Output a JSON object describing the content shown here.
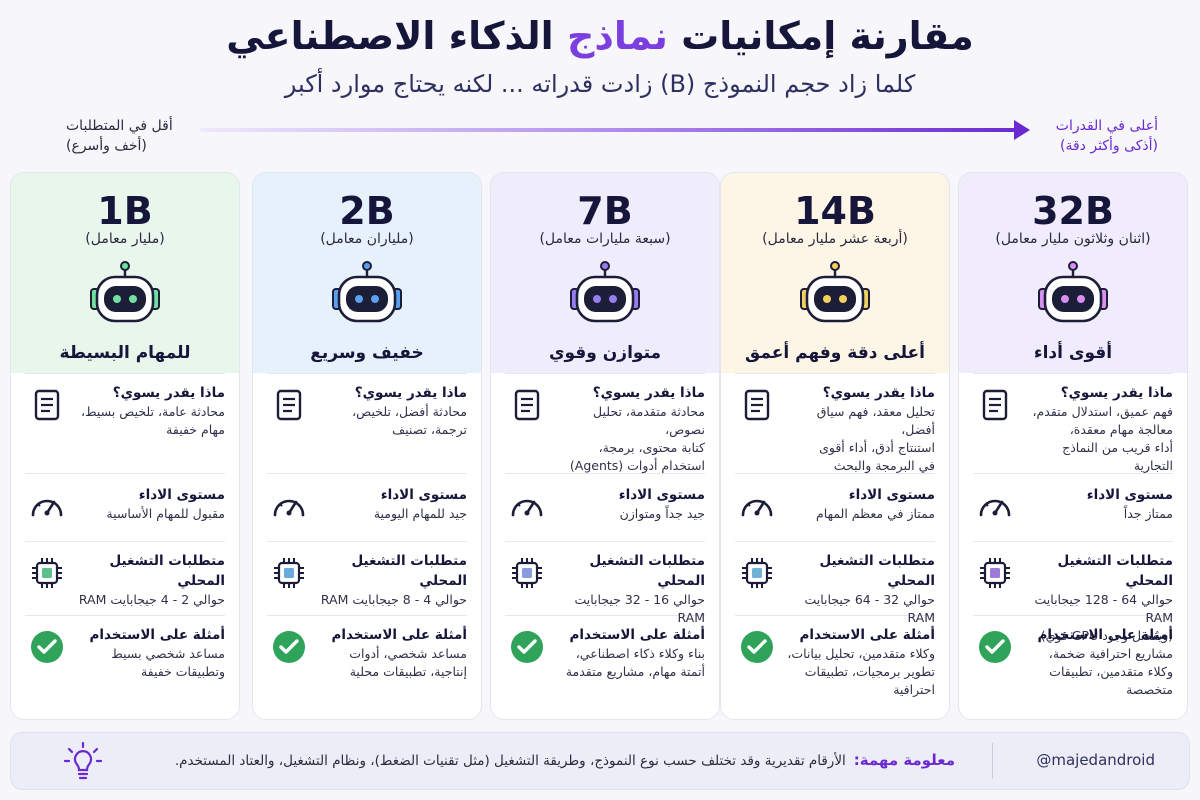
{
  "header": {
    "title_part1": "مقارنة إمكانيات",
    "title_highlight": "نماذج",
    "title_part2": "الذكاء الاصطناعي",
    "subtitle": "كلما زاد حجم النموذج (B) زادت قدراته ... لكنه يحتاج موارد أكبر"
  },
  "scale": {
    "right_line1": "أعلى في القدرات",
    "right_line2": "(أذكى وأكثر دقة)",
    "left_line1": "أقل في المتطلبات",
    "left_line2": "(أخف وأسرع)"
  },
  "colors": {
    "accent": "#6a2ad0",
    "check": "#2fa35a"
  },
  "section_titles": {
    "capabilities": "ماذا يقدر يسوي؟",
    "performance": "مستوى الاداء",
    "requirements": "متطلبات التشغيل المحلي",
    "examples": "أمثلة على الاستخدام"
  },
  "cards": [
    {
      "size": "32B",
      "subtitle": "(اثنان وثلاثون مليار معامل)",
      "tag": "أقوى أداء",
      "bg": "#f1ecfb",
      "eye": "#d98ff0",
      "chip": "#a07ad8",
      "capabilities": [
        "فهم عميق، استدلال متقدم،",
        "معالجة مهام معقدة،",
        "أداء قريب من النماذج التجارية"
      ],
      "performance": "ممتاز جداً",
      "requirements": [
        "حوالي 64 - 128 جيجابايت RAM",
        "(ويفضل وجود GPU قوي)"
      ],
      "examples": [
        "مشاريع احترافية ضخمة،",
        "وكلاء متقدمين، تطبيقات متخصصة"
      ]
    },
    {
      "size": "14B",
      "subtitle": "(أربعة عشر مليار معامل)",
      "tag": "أعلى دقة وفهم أعمق",
      "bg": "#fdf6e6",
      "eye": "#f2d060",
      "chip": "#6fb2d6",
      "capabilities": [
        "تحليل معقد، فهم سياق أفضل،",
        "استنتاج أدق، أداء أقوى",
        "في البرمجة والبحث"
      ],
      "performance": "ممتاز في معظم المهام",
      "requirements": [
        "حوالي 32 - 64 جيجابايت RAM"
      ],
      "examples": [
        "وكلاء متقدمين، تحليل بيانات،",
        "تطوير برمجيات، تطبيقات احترافية"
      ]
    },
    {
      "size": "7B",
      "subtitle": "(سبعة مليارات معامل)",
      "tag": "متوازن وقوي",
      "bg": "#efecfb",
      "eye": "#9a7cf0",
      "chip": "#8a9ae0",
      "capabilities": [
        "محادثة متقدمة، تحليل نصوص،",
        "كتابة محتوى، برمجة،",
        "استخدام أدوات (Agents)"
      ],
      "performance": "جيد جداً ومتوازن",
      "requirements": [
        "حوالي 16 - 32 جيجابايت RAM"
      ],
      "examples": [
        "بناء وكلاء ذكاء اصطناعي،",
        "أتمتة مهام، مشاريع متقدمة"
      ]
    },
    {
      "size": "2B",
      "subtitle": "(ملياران معامل)",
      "tag": "خفيف وسريع",
      "bg": "#e7f1fb",
      "eye": "#5aa0f0",
      "chip": "#6aa8e0",
      "capabilities": [
        "محادثة أفضل، تلخيص،",
        "ترجمة، تصنيف"
      ],
      "performance": "جيد للمهام اليومية",
      "requirements": [
        "حوالي 4 - 8 جيجابايت RAM"
      ],
      "examples": [
        "مساعد شخصي، أدوات",
        "إنتاجية، تطبيقات محلية"
      ]
    },
    {
      "size": "1B",
      "subtitle": "(مليار معامل)",
      "tag": "للمهام البسيطة",
      "bg": "#e9f6ec",
      "eye": "#6fe0a0",
      "chip": "#5cc08a",
      "capabilities": [
        "محادثة عامة، تلخيص بسيط،",
        "مهام خفيفة"
      ],
      "performance": "مقبول للمهام الأساسية",
      "requirements": [
        "حوالي 2 - 4 جيجابايت RAM"
      ],
      "examples": [
        "مساعد شخصي بسيط",
        "وتطبيقات خفيفة"
      ]
    }
  ],
  "footer": {
    "note_label": "معلومة مهمة:",
    "note_text": "الأرقام تقديرية وقد تختلف حسب نوع النموذج، وطريقة التشغيل (مثل تقنيات الضغط)، ونظام التشغيل، والعتاد المستخدم.",
    "handle": "@majedandroid"
  }
}
